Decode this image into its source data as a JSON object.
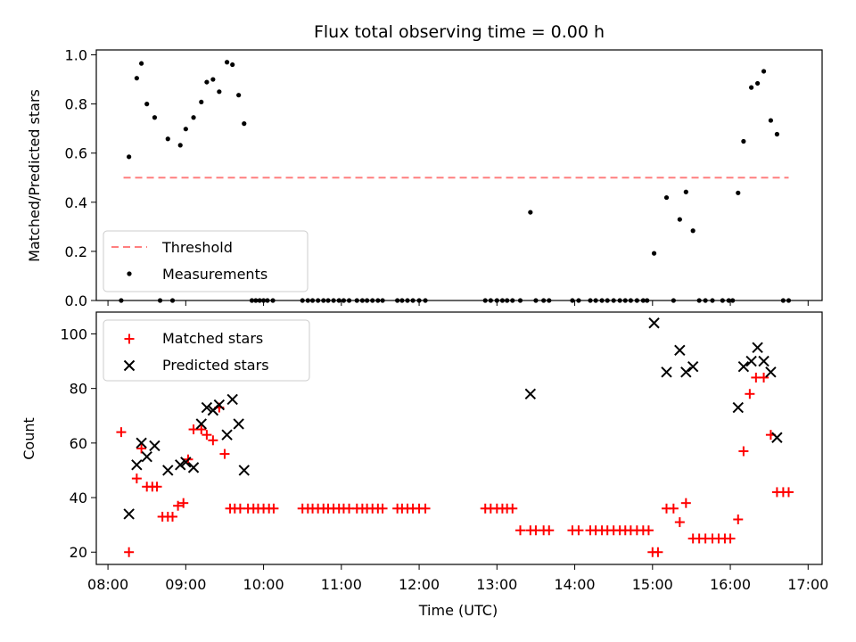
{
  "chart_data": [
    {
      "type": "scatter",
      "panel": "top",
      "title": "Flux total observing time = 0.00 h",
      "ylabel": "Matched/Predicted stars",
      "ylim": [
        0,
        1.02
      ],
      "yticks": [
        "0.0",
        "0.2",
        "0.4",
        "0.6",
        "0.8",
        "1.0"
      ],
      "ytick_values": [
        0,
        0.2,
        0.4,
        0.6,
        0.8,
        1.0
      ],
      "legend_position": "lower-left",
      "threshold": {
        "name": "Threshold",
        "value": 0.5,
        "x_start": 8.2,
        "x_end": 16.75,
        "color": "#ff7f7f"
      },
      "series": [
        {
          "name": "Measurements",
          "color": "#000000",
          "x": [
            8.17,
            8.27,
            8.37,
            8.43,
            8.5,
            8.6,
            8.67,
            8.77,
            8.83,
            8.93,
            9.0,
            9.1,
            9.2,
            9.27,
            9.35,
            9.43,
            9.53,
            9.6,
            9.68,
            9.75,
            9.85,
            9.9,
            9.95,
            10.0,
            10.05,
            10.12,
            10.5,
            10.57,
            10.63,
            10.7,
            10.77,
            10.83,
            10.9,
            10.97,
            11.03,
            11.1,
            11.2,
            11.27,
            11.33,
            11.4,
            11.47,
            11.53,
            11.72,
            11.78,
            11.85,
            11.92,
            12.0,
            12.08,
            12.85,
            12.92,
            13.0,
            13.07,
            13.13,
            13.2,
            13.3,
            13.43,
            13.5,
            13.6,
            13.67,
            13.97,
            14.05,
            14.2,
            14.27,
            14.35,
            14.42,
            14.5,
            14.58,
            14.65,
            14.72,
            14.8,
            14.88,
            14.93,
            15.02,
            15.18,
            15.27,
            15.35,
            15.43,
            15.52,
            15.6,
            15.68,
            15.77,
            15.9,
            15.98,
            16.03,
            16.1,
            16.17,
            16.27,
            16.35,
            16.43,
            16.52,
            16.6,
            16.68,
            16.75
          ],
          "y": [
            0.0,
            0.585,
            0.905,
            0.965,
            0.8,
            0.745,
            0.0,
            0.658,
            0.0,
            0.632,
            0.698,
            0.745,
            0.808,
            0.889,
            0.9,
            0.85,
            0.97,
            0.96,
            0.836,
            0.72,
            0.0,
            0.0,
            0.0,
            0.0,
            0.0,
            0.0,
            0.0,
            0.0,
            0.0,
            0.0,
            0.0,
            0.0,
            0.0,
            0.0,
            0.0,
            0.0,
            0.0,
            0.0,
            0.0,
            0.0,
            0.0,
            0.0,
            0.0,
            0.0,
            0.0,
            0.0,
            0.0,
            0.0,
            0.0,
            0.0,
            0.0,
            0.0,
            0.0,
            0.0,
            0.0,
            0.359,
            0.0,
            0.0,
            0.0,
            0.0,
            0.0,
            0.0,
            0.0,
            0.0,
            0.0,
            0.0,
            0.0,
            0.0,
            0.0,
            0.0,
            0.0,
            0.0,
            0.192,
            0.419,
            0.0,
            0.33,
            0.442,
            0.284,
            0.0,
            0.0,
            0.0,
            0.0,
            0.0,
            0.0,
            0.438,
            0.648,
            0.867,
            0.884,
            0.933,
            0.733,
            0.677,
            0.0,
            0.0
          ]
        }
      ]
    },
    {
      "type": "scatter",
      "panel": "bottom",
      "xlabel": "Time (UTC)",
      "ylabel": "Count",
      "ylim": [
        15.5,
        108
      ],
      "yticks": [
        "20",
        "40",
        "60",
        "80",
        "100"
      ],
      "ytick_values": [
        20,
        40,
        60,
        80,
        100
      ],
      "xlim": [
        7.85,
        17.18
      ],
      "xticks": [
        "08:00",
        "09:00",
        "10:00",
        "11:00",
        "12:00",
        "13:00",
        "14:00",
        "15:00",
        "16:00",
        "17:00"
      ],
      "xtick_values": [
        8,
        9,
        10,
        11,
        12,
        13,
        14,
        15,
        16,
        17
      ],
      "legend_position": "upper-left",
      "series": [
        {
          "name": "Matched stars",
          "marker": "plus",
          "color": "#ff0000",
          "x": [
            8.17,
            8.27,
            8.37,
            8.43,
            8.5,
            8.57,
            8.63,
            8.7,
            8.77,
            8.83,
            8.9,
            8.97,
            9.03,
            9.1,
            9.2,
            9.27,
            9.35,
            9.43,
            9.5,
            9.57,
            9.63,
            9.7,
            9.8,
            9.87,
            9.93,
            10.0,
            10.07,
            10.13,
            10.5,
            10.57,
            10.63,
            10.7,
            10.77,
            10.83,
            10.9,
            10.97,
            11.03,
            11.1,
            11.2,
            11.27,
            11.33,
            11.4,
            11.47,
            11.53,
            11.72,
            11.78,
            11.85,
            11.92,
            12.0,
            12.08,
            12.85,
            12.92,
            13.0,
            13.07,
            13.13,
            13.2,
            13.3,
            13.43,
            13.5,
            13.6,
            13.67,
            13.97,
            14.05,
            14.2,
            14.27,
            14.35,
            14.42,
            14.5,
            14.58,
            14.65,
            14.72,
            14.8,
            14.88,
            14.95,
            15.0,
            15.07,
            15.18,
            15.27,
            15.35,
            15.43,
            15.52,
            15.6,
            15.68,
            15.77,
            15.85,
            15.93,
            16.0,
            16.1,
            16.17,
            16.25,
            16.33,
            16.43,
            16.52,
            16.6,
            16.68,
            16.75
          ],
          "y": [
            64,
            20,
            47,
            58,
            44,
            44,
            44,
            33,
            33,
            33,
            37,
            38,
            54,
            65,
            65,
            63,
            61,
            73,
            56,
            36,
            36,
            36,
            36,
            36,
            36,
            36,
            36,
            36,
            36,
            36,
            36,
            36,
            36,
            36,
            36,
            36,
            36,
            36,
            36,
            36,
            36,
            36,
            36,
            36,
            36,
            36,
            36,
            36,
            36,
            36,
            36,
            36,
            36,
            36,
            36,
            36,
            28,
            28,
            28,
            28,
            28,
            28,
            28,
            28,
            28,
            28,
            28,
            28,
            28,
            28,
            28,
            28,
            28,
            28,
            20,
            20,
            36,
            36,
            31,
            38,
            25,
            25,
            25,
            25,
            25,
            25,
            25,
            32,
            57,
            78,
            84,
            84,
            63,
            42,
            42,
            42
          ]
        },
        {
          "name": "Predicted stars",
          "marker": "x",
          "color": "#000000",
          "x": [
            8.27,
            8.37,
            8.43,
            8.5,
            8.6,
            8.77,
            8.93,
            9.0,
            9.1,
            9.2,
            9.27,
            9.35,
            9.43,
            9.53,
            9.6,
            9.68,
            9.75,
            13.43,
            15.02,
            15.18,
            15.35,
            15.43,
            15.52,
            16.1,
            16.17,
            16.27,
            16.35,
            16.43,
            16.52,
            16.6
          ],
          "y": [
            34,
            52,
            60,
            55,
            59,
            50,
            52,
            53,
            51,
            67,
            73,
            72,
            74,
            63,
            76,
            67,
            50,
            78,
            104,
            86,
            94,
            86,
            88,
            73,
            88,
            90,
            95,
            90,
            86,
            62
          ]
        }
      ]
    }
  ]
}
